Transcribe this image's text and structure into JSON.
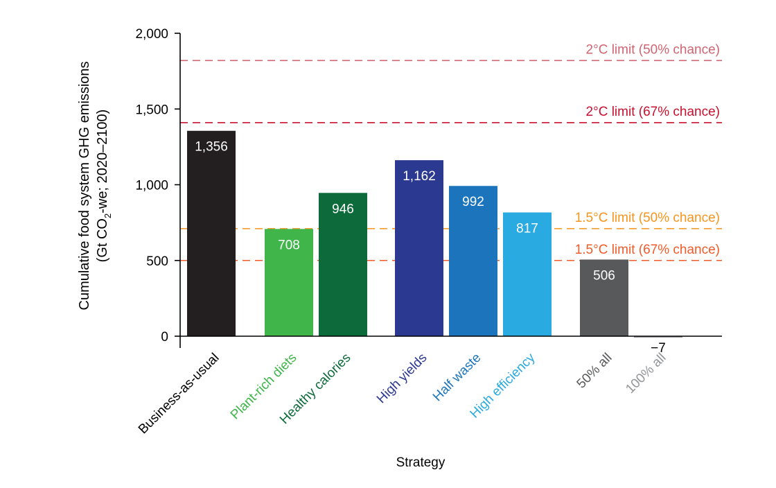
{
  "chart_data": {
    "type": "bar",
    "ylabel_line1": "Cumulative food system GHG emissions",
    "ylabel_line2_pre": "(Gt CO",
    "ylabel_line2_sub": "2",
    "ylabel_line2_post": "-we; 2020–2100)",
    "xlabel": "Strategy",
    "ylim": [
      0,
      2000
    ],
    "yticks": [
      {
        "value": 0,
        "label": "0"
      },
      {
        "value": 500,
        "label": "500"
      },
      {
        "value": 1000,
        "label": "1,000"
      },
      {
        "value": 1500,
        "label": "1,500"
      },
      {
        "value": 2000,
        "label": "2,000"
      }
    ],
    "bars": [
      {
        "category": "Business-as-usual",
        "value": 1356,
        "label": "1,356",
        "color": "#231f20",
        "label_color": "#000000",
        "value_color": "#ffffff"
      },
      {
        "category": "Plant-rich diets",
        "value": 708,
        "label": "708",
        "color": "#3fb54a",
        "label_color": "#3fb54a",
        "value_color": "#ffffff"
      },
      {
        "category": "Healthy calories",
        "value": 946,
        "label": "946",
        "color": "#0d6a3a",
        "label_color": "#0d6a3a",
        "value_color": "#ffffff"
      },
      {
        "category": "High yields",
        "value": 1162,
        "label": "1,162",
        "color": "#2b3990",
        "label_color": "#2b3990",
        "value_color": "#ffffff"
      },
      {
        "category": "Half waste",
        "value": 992,
        "label": "992",
        "color": "#1c75bc",
        "label_color": "#1c75bc",
        "value_color": "#ffffff"
      },
      {
        "category": "High efficiency",
        "value": 817,
        "label": "817",
        "color": "#29aae1",
        "label_color": "#29aae1",
        "value_color": "#ffffff"
      },
      {
        "category": "50% all",
        "value": 506,
        "label": "506",
        "color": "#58595b",
        "label_color": "#58595b",
        "value_color": "#ffffff"
      },
      {
        "category": "100% all",
        "value": -7,
        "label": "−7",
        "color": "#939598",
        "label_color": "#939598",
        "value_color": "#000000"
      }
    ],
    "reference_lines": [
      {
        "value": 1820,
        "label": "2°C limit (50% chance)",
        "color": "#d06470"
      },
      {
        "value": 1410,
        "label": "2°C limit (67% chance)",
        "color": "#c8102e"
      },
      {
        "value": 710,
        "label": "1.5°C limit (50% chance)",
        "color": "#f7941d"
      },
      {
        "value": 500,
        "label": "1.5°C limit (67% chance)",
        "color": "#f15a29"
      }
    ]
  }
}
